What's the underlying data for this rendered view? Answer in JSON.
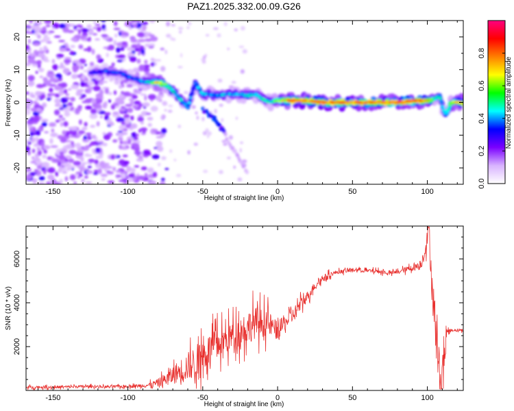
{
  "chart_data": [
    {
      "type": "heatmap",
      "title": "PAZ1.2025.332.00.09.G26",
      "xlabel": "Height of straight line (km)",
      "ylabel": "Frequency (Hz)",
      "xlim": [
        -168,
        124
      ],
      "ylim": [
        -25,
        25
      ],
      "xticks": [
        -150,
        -100,
        -50,
        0,
        50,
        100
      ],
      "yticks": [
        -20,
        -10,
        0,
        10,
        20
      ],
      "colorbar": {
        "label": "Normalized spectral amplitude",
        "range": [
          0.0,
          1.0
        ],
        "ticks": [
          "0.0",
          "0.2",
          "0.4",
          "0.6",
          "0.8"
        ],
        "colors": [
          "#ffffff",
          "#d8b3ff",
          "#7a00ff",
          "#0000ff",
          "#00ffff",
          "#00ff00",
          "#ffff00",
          "#ff7f00",
          "#ff0000",
          "#ff0080"
        ]
      },
      "ridge": {
        "description_free": true,
        "x": [
          -125,
          -115,
          -105,
          -95,
          -85,
          -80,
          -75,
          -70,
          -65,
          -60,
          -55,
          -50,
          -45,
          -40,
          -35,
          -30,
          -25,
          -20,
          -15,
          -10,
          -5,
          0,
          10,
          20,
          30,
          40,
          50,
          60,
          70,
          80,
          90,
          100,
          105,
          108,
          112,
          116,
          120,
          124
        ],
        "y": [
          9,
          9.5,
          9,
          7,
          6,
          6,
          5.5,
          3.5,
          1,
          -1.5,
          6,
          2.5,
          2.5,
          2,
          2.5,
          2.5,
          2.5,
          2,
          2.5,
          1,
          0,
          0.5,
          0.5,
          0.5,
          0,
          0,
          0,
          0,
          0,
          0,
          0.5,
          0.5,
          1,
          2,
          -4,
          0,
          0,
          0
        ],
        "amplitude": [
          0.3,
          0.35,
          0.35,
          0.35,
          0.45,
          0.7,
          0.55,
          0.5,
          0.45,
          0.4,
          0.35,
          0.45,
          0.4,
          0.4,
          0.45,
          0.4,
          0.4,
          0.45,
          0.45,
          0.45,
          0.5,
          0.55,
          0.85,
          0.8,
          0.85,
          0.85,
          0.8,
          0.8,
          0.8,
          0.85,
          0.85,
          0.75,
          0.5,
          0.45,
          0.4,
          0.6,
          0.7,
          0.75
        ]
      },
      "secondary_branch": {
        "x": [
          -50,
          -45,
          -40,
          -35,
          -30,
          -25,
          -20
        ],
        "y": [
          -2,
          -4,
          -6,
          -10,
          -14,
          -18,
          -21
        ]
      }
    },
    {
      "type": "line",
      "xlabel": "Height of straight line (km)",
      "ylabel": "SNR (10 * v/v)",
      "xlim": [
        -168,
        124
      ],
      "ylim": [
        0,
        7500
      ],
      "xticks": [
        -150,
        -100,
        -50,
        0,
        50,
        100
      ],
      "yticks": [
        2000,
        4000,
        6000
      ],
      "color": "#e8302e",
      "x": [
        -168,
        -150,
        -130,
        -110,
        -95,
        -85,
        -80,
        -75,
        -70,
        -65,
        -60,
        -55,
        -50,
        -45,
        -40,
        -35,
        -30,
        -25,
        -20,
        -15,
        -10,
        -5,
        0,
        5,
        10,
        15,
        20,
        25,
        30,
        35,
        40,
        45,
        50,
        55,
        60,
        65,
        70,
        75,
        80,
        85,
        90,
        95,
        97,
        99,
        101,
        103,
        105,
        107,
        109,
        111,
        113,
        116,
        120,
        124
      ],
      "y": [
        150,
        150,
        180,
        170,
        200,
        250,
        350,
        500,
        700,
        900,
        1100,
        1300,
        1600,
        1900,
        2100,
        2300,
        2500,
        2700,
        2900,
        3100,
        3100,
        3000,
        2700,
        3100,
        3400,
        3900,
        4300,
        4800,
        5100,
        5300,
        5400,
        5450,
        5500,
        5500,
        5450,
        5450,
        5400,
        5350,
        5400,
        5500,
        5600,
        5700,
        6000,
        6600,
        7300,
        5000,
        3200,
        1500,
        600,
        1000,
        2700,
        2750,
        2750,
        2750
      ],
      "noise_amplitude": [
        100,
        100,
        100,
        100,
        120,
        200,
        300,
        500,
        700,
        900,
        1100,
        1200,
        1300,
        1200,
        1200,
        1100,
        1100,
        1200,
        1300,
        1200,
        1100,
        900,
        700,
        600,
        600,
        500,
        400,
        300,
        250,
        200,
        150,
        150,
        150,
        150,
        150,
        150,
        150,
        150,
        150,
        200,
        250,
        350,
        500,
        600,
        800,
        1500,
        1800,
        1500,
        800,
        1500,
        200,
        100,
        100,
        100
      ]
    }
  ]
}
